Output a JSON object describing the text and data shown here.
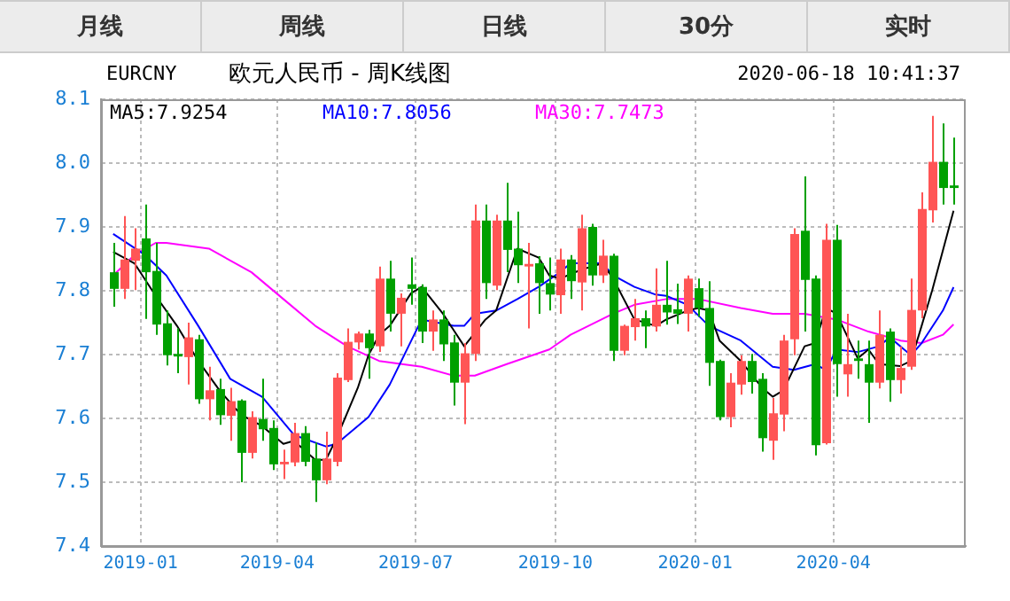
{
  "chart_data": [
    {
      "type": "other",
      "annotations": [
        "月线",
        "周线",
        "日线",
        "30分",
        "实时"
      ]
    },
    {
      "type": "candlestick",
      "title": "欧元人民币 - 周K线图",
      "annotations": [
        "EURCNY",
        "2020-06-18 10:41:37"
      ],
      "x": [
        "2018-12-14",
        "2018-12-21",
        "2018-12-28",
        "2019-01-04",
        "2019-01-11",
        "2019-01-18",
        "2019-01-25",
        "2019-02-01",
        "2019-02-08",
        "2019-02-15",
        "2019-02-22",
        "2019-03-01",
        "2019-03-08",
        "2019-03-15",
        "2019-03-22",
        "2019-03-29",
        "2019-04-05",
        "2019-04-12",
        "2019-04-19",
        "2019-04-26",
        "2019-05-03",
        "2019-05-10",
        "2019-05-17",
        "2019-05-24",
        "2019-05-31",
        "2019-06-07",
        "2019-06-14",
        "2019-06-21",
        "2019-06-28",
        "2019-07-05",
        "2019-07-12",
        "2019-07-19",
        "2019-07-26",
        "2019-08-02",
        "2019-08-09",
        "2019-08-16",
        "2019-08-23",
        "2019-08-30",
        "2019-09-06",
        "2019-09-13",
        "2019-09-20",
        "2019-09-27",
        "2019-10-04",
        "2019-10-11",
        "2019-10-18",
        "2019-10-25",
        "2019-11-01",
        "2019-11-08",
        "2019-11-15",
        "2019-11-22",
        "2019-11-29",
        "2019-12-06",
        "2019-12-13",
        "2019-12-20",
        "2019-12-27",
        "2020-01-03",
        "2020-01-10",
        "2020-01-17",
        "2020-01-24",
        "2020-01-31",
        "2020-02-07",
        "2020-02-14",
        "2020-02-21",
        "2020-02-28",
        "2020-03-06",
        "2020-03-13",
        "2020-03-20",
        "2020-03-27",
        "2020-04-03",
        "2020-04-10",
        "2020-04-17",
        "2020-04-24",
        "2020-05-01",
        "2020-05-08",
        "2020-05-15",
        "2020-05-22",
        "2020-05-29",
        "2020-06-05",
        "2020-06-12",
        "2020-06-19"
      ],
      "ohlc": [
        [
          7.829,
          7.875,
          7.775,
          7.803
        ],
        [
          7.803,
          7.917,
          7.787,
          7.849
        ],
        [
          7.847,
          7.898,
          7.801,
          7.866
        ],
        [
          7.882,
          7.935,
          7.756,
          7.829
        ],
        [
          7.831,
          7.875,
          7.731,
          7.747
        ],
        [
          7.749,
          7.769,
          7.683,
          7.699
        ],
        [
          7.701,
          7.741,
          7.671,
          7.697
        ],
        [
          7.696,
          7.75,
          7.653,
          7.727
        ],
        [
          7.724,
          7.731,
          7.623,
          7.63
        ],
        [
          7.63,
          7.681,
          7.597,
          7.644
        ],
        [
          7.646,
          7.662,
          7.59,
          7.605
        ],
        [
          7.604,
          7.648,
          7.565,
          7.627
        ],
        [
          7.628,
          7.63,
          7.5,
          7.546
        ],
        [
          7.546,
          7.611,
          7.537,
          7.602
        ],
        [
          7.599,
          7.662,
          7.565,
          7.583
        ],
        [
          7.585,
          7.597,
          7.519,
          7.528
        ],
        [
          7.528,
          7.551,
          7.505,
          7.532
        ],
        [
          7.531,
          7.593,
          7.525,
          7.577
        ],
        [
          7.577,
          7.588,
          7.525,
          7.532
        ],
        [
          7.537,
          7.562,
          7.469,
          7.503
        ],
        [
          7.503,
          7.579,
          7.497,
          7.537
        ],
        [
          7.532,
          7.671,
          7.525,
          7.664
        ],
        [
          7.66,
          7.741,
          7.657,
          7.72
        ],
        [
          7.719,
          7.736,
          7.708,
          7.733
        ],
        [
          7.733,
          7.739,
          7.662,
          7.71
        ],
        [
          7.713,
          7.838,
          7.704,
          7.819
        ],
        [
          7.819,
          7.847,
          7.736,
          7.764
        ],
        [
          7.764,
          7.796,
          7.713,
          7.789
        ],
        [
          7.81,
          7.852,
          7.778,
          7.803
        ],
        [
          7.806,
          7.81,
          7.718,
          7.736
        ],
        [
          7.736,
          7.769,
          7.706,
          7.755
        ],
        [
          7.755,
          7.769,
          7.69,
          7.716
        ],
        [
          7.719,
          7.731,
          7.62,
          7.656
        ],
        [
          7.656,
          7.718,
          7.591,
          7.702
        ],
        [
          7.701,
          7.935,
          7.69,
          7.91
        ],
        [
          7.91,
          7.935,
          7.787,
          7.812
        ],
        [
          7.808,
          7.919,
          7.801,
          7.91
        ],
        [
          7.91,
          7.969,
          7.829,
          7.864
        ],
        [
          7.866,
          7.924,
          7.812,
          7.84
        ],
        [
          7.838,
          7.875,
          7.741,
          7.842
        ],
        [
          7.843,
          7.854,
          7.764,
          7.812
        ],
        [
          7.812,
          7.852,
          7.769,
          7.794
        ],
        [
          7.793,
          7.866,
          7.764,
          7.849
        ],
        [
          7.849,
          7.856,
          7.787,
          7.815
        ],
        [
          7.813,
          7.919,
          7.769,
          7.898
        ],
        [
          7.9,
          7.905,
          7.808,
          7.824
        ],
        [
          7.824,
          7.88,
          7.812,
          7.855
        ],
        [
          7.855,
          7.858,
          7.69,
          7.706
        ],
        [
          7.706,
          7.747,
          7.699,
          7.745
        ],
        [
          7.743,
          7.787,
          7.722,
          7.757
        ],
        [
          7.757,
          7.769,
          7.71,
          7.744
        ],
        [
          7.744,
          7.835,
          7.736,
          7.778
        ],
        [
          7.778,
          7.847,
          7.747,
          7.766
        ],
        [
          7.771,
          7.811,
          7.748,
          7.764
        ],
        [
          7.764,
          7.824,
          7.736,
          7.819
        ],
        [
          7.804,
          7.819,
          7.759,
          7.773
        ],
        [
          7.773,
          7.815,
          7.651,
          7.687
        ],
        [
          7.69,
          7.692,
          7.597,
          7.602
        ],
        [
          7.602,
          7.671,
          7.586,
          7.656
        ],
        [
          7.653,
          7.699,
          7.637,
          7.69
        ],
        [
          7.69,
          7.701,
          7.639,
          7.657
        ],
        [
          7.662,
          7.671,
          7.548,
          7.569
        ],
        [
          7.565,
          7.632,
          7.535,
          7.608
        ],
        [
          7.606,
          7.731,
          7.58,
          7.722
        ],
        [
          7.724,
          7.898,
          7.699,
          7.889
        ],
        [
          7.894,
          7.979,
          7.736,
          7.817
        ],
        [
          7.819,
          7.824,
          7.542,
          7.558
        ],
        [
          7.561,
          7.905,
          7.559,
          7.88
        ],
        [
          7.88,
          7.903,
          7.634,
          7.685
        ],
        [
          7.669,
          7.764,
          7.634,
          7.685
        ],
        [
          7.694,
          7.722,
          7.662,
          7.69
        ],
        [
          7.685,
          7.722,
          7.593,
          7.656
        ],
        [
          7.656,
          7.769,
          7.647,
          7.731
        ],
        [
          7.736,
          7.741,
          7.626,
          7.66
        ],
        [
          7.66,
          7.713,
          7.639,
          7.679
        ],
        [
          7.681,
          7.819,
          7.676,
          7.77
        ],
        [
          7.769,
          7.954,
          7.757,
          7.928
        ],
        [
          7.926,
          8.074,
          7.907,
          8.002
        ],
        [
          8.002,
          8.062,
          7.935,
          7.961
        ],
        [
          7.965,
          8.04,
          7.935,
          7.961
        ]
      ],
      "colors": [
        "#00a000",
        "#ff5555",
        "#ff5555",
        "#00a000",
        "#00a000",
        "#00a000",
        "#00a000",
        "#ff5555",
        "#00a000",
        "#ff5555",
        "#00a000",
        "#ff5555",
        "#00a000",
        "#ff5555",
        "#00a000",
        "#00a000",
        "#ff5555",
        "#ff5555",
        "#00a000",
        "#00a000",
        "#ff5555",
        "#ff5555",
        "#ff5555",
        "#ff5555",
        "#00a000",
        "#ff5555",
        "#00a000",
        "#ff5555",
        "#00a000",
        "#00a000",
        "#ff5555",
        "#00a000",
        "#00a000",
        "#ff5555",
        "#ff5555",
        "#00a000",
        "#ff5555",
        "#00a000",
        "#00a000",
        "#ff5555",
        "#00a000",
        "#00a000",
        "#ff5555",
        "#00a000",
        "#ff5555",
        "#00a000",
        "#ff5555",
        "#00a000",
        "#ff5555",
        "#ff5555",
        "#00a000",
        "#ff5555",
        "#00a000",
        "#00a000",
        "#ff5555",
        "#00a000",
        "#00a000",
        "#00a000",
        "#ff5555",
        "#ff5555",
        "#00a000",
        "#00a000",
        "#ff5555",
        "#ff5555",
        "#ff5555",
        "#00a000",
        "#00a000",
        "#ff5555",
        "#00a000",
        "#ff5555",
        "#00a000",
        "#00a000",
        "#ff5555",
        "#00a000",
        "#ff5555",
        "#ff5555",
        "#ff5555",
        "#ff5555",
        "#00a000",
        "#00a000"
      ],
      "series": [
        {
          "name": "MA5:7.9254",
          "type": "line",
          "color": "#000000",
          "x": [
            "2018-12-14",
            "2018-12-28",
            "2019-01-11",
            "2019-01-25",
            "2019-02-08",
            "2019-02-22",
            "2019-03-08",
            "2019-03-22",
            "2019-04-05",
            "2019-04-12",
            "2019-04-26",
            "2019-05-03",
            "2019-05-10",
            "2019-05-24",
            "2019-05-31",
            "2019-06-07",
            "2019-06-14",
            "2019-06-28",
            "2019-07-05",
            "2019-07-19",
            "2019-08-02",
            "2019-08-16",
            "2019-08-23",
            "2019-09-06",
            "2019-09-20",
            "2019-09-27",
            "2019-10-04",
            "2019-10-18",
            "2019-11-01",
            "2019-11-08",
            "2019-11-22",
            "2019-12-06",
            "2019-12-13",
            "2019-12-27",
            "2020-01-03",
            "2020-01-10",
            "2020-01-17",
            "2020-01-31",
            "2020-02-14",
            "2020-02-21",
            "2020-02-28",
            "2020-03-13",
            "2020-03-20",
            "2020-03-27",
            "2020-04-03",
            "2020-04-17",
            "2020-04-24",
            "2020-05-01",
            "2020-05-15",
            "2020-05-22",
            "2020-05-29",
            "2020-06-05",
            "2020-06-19"
          ],
          "values": [
            7.861,
            7.843,
            7.792,
            7.745,
            7.69,
            7.644,
            7.606,
            7.588,
            7.56,
            7.565,
            7.535,
            7.535,
            7.569,
            7.648,
            7.699,
            7.731,
            7.745,
            7.796,
            7.806,
            7.764,
            7.713,
            7.755,
            7.769,
            7.866,
            7.852,
            7.824,
            7.819,
            7.833,
            7.843,
            7.819,
            7.755,
            7.745,
            7.755,
            7.769,
            7.773,
            7.769,
            7.722,
            7.69,
            7.648,
            7.634,
            7.644,
            7.713,
            7.718,
            7.773,
            7.764,
            7.694,
            7.708,
            7.685,
            7.682,
            7.69,
            7.745,
            7.801,
            7.9254
          ]
        },
        {
          "name": "MA10:7.8056",
          "type": "line",
          "color": "#0000ff",
          "x": [
            "2018-12-14",
            "2019-01-04",
            "2019-01-18",
            "2019-02-08",
            "2019-03-01",
            "2019-03-22",
            "2019-04-12",
            "2019-05-03",
            "2019-05-10",
            "2019-05-31",
            "2019-06-14",
            "2019-07-05",
            "2019-07-26",
            "2019-08-02",
            "2019-08-09",
            "2019-08-23",
            "2019-09-06",
            "2019-09-20",
            "2019-10-04",
            "2019-10-11",
            "2019-11-01",
            "2019-11-08",
            "2019-11-22",
            "2019-12-06",
            "2019-12-13",
            "2019-12-27",
            "2020-01-10",
            "2020-01-31",
            "2020-02-21",
            "2020-03-06",
            "2020-03-20",
            "2020-03-27",
            "2020-04-03",
            "2020-04-17",
            "2020-05-01",
            "2020-05-08",
            "2020-05-22",
            "2020-05-29",
            "2020-06-12",
            "2020-06-19"
          ],
          "values": [
            7.889,
            7.856,
            7.824,
            7.745,
            7.662,
            7.634,
            7.574,
            7.556,
            7.56,
            7.602,
            7.653,
            7.755,
            7.745,
            7.745,
            7.764,
            7.769,
            7.787,
            7.806,
            7.829,
            7.843,
            7.843,
            7.824,
            7.806,
            7.794,
            7.792,
            7.778,
            7.745,
            7.722,
            7.681,
            7.676,
            7.685,
            7.676,
            7.708,
            7.704,
            7.713,
            7.727,
            7.699,
            7.718,
            7.769,
            7.8056
          ]
        },
        {
          "name": "MA30:7.7473",
          "type": "line",
          "color": "#ff00ff",
          "x": [
            "2018-12-14",
            "2018-12-28",
            "2019-01-11",
            "2019-01-18",
            "2019-02-15",
            "2019-03-15",
            "2019-04-05",
            "2019-04-26",
            "2019-05-17",
            "2019-06-07",
            "2019-07-05",
            "2019-07-26",
            "2019-08-09",
            "2019-08-30",
            "2019-09-27",
            "2019-10-11",
            "2019-11-08",
            "2019-11-22",
            "2019-12-13",
            "2020-01-03",
            "2020-01-31",
            "2020-02-21",
            "2020-03-13",
            "2020-04-03",
            "2020-04-24",
            "2020-05-15",
            "2020-05-29",
            "2020-06-12",
            "2020-06-19"
          ],
          "values": [
            7.824,
            7.856,
            7.875,
            7.875,
            7.866,
            7.829,
            7.787,
            7.745,
            7.713,
            7.69,
            7.681,
            7.667,
            7.667,
            7.685,
            7.708,
            7.731,
            7.764,
            7.778,
            7.787,
            7.787,
            7.773,
            7.764,
            7.764,
            7.755,
            7.736,
            7.722,
            7.718,
            7.731,
            7.7473
          ]
        }
      ],
      "xlim": [
        "2018-12-06",
        "2020-06-27"
      ],
      "xticks": [
        "2019-01",
        "2019-04",
        "2019-07",
        "2019-10",
        "2020-01",
        "2020-04"
      ],
      "ylim": [
        7.4,
        8.1
      ],
      "yticks": [
        7.4,
        7.5,
        7.6,
        7.7,
        7.8,
        7.9,
        {
          "value": 8,
          "label": "8.0"
        },
        8.1
      ],
      "grid": true,
      "legend": "top left",
      "marker": "none",
      "line_style": "solid"
    }
  ]
}
